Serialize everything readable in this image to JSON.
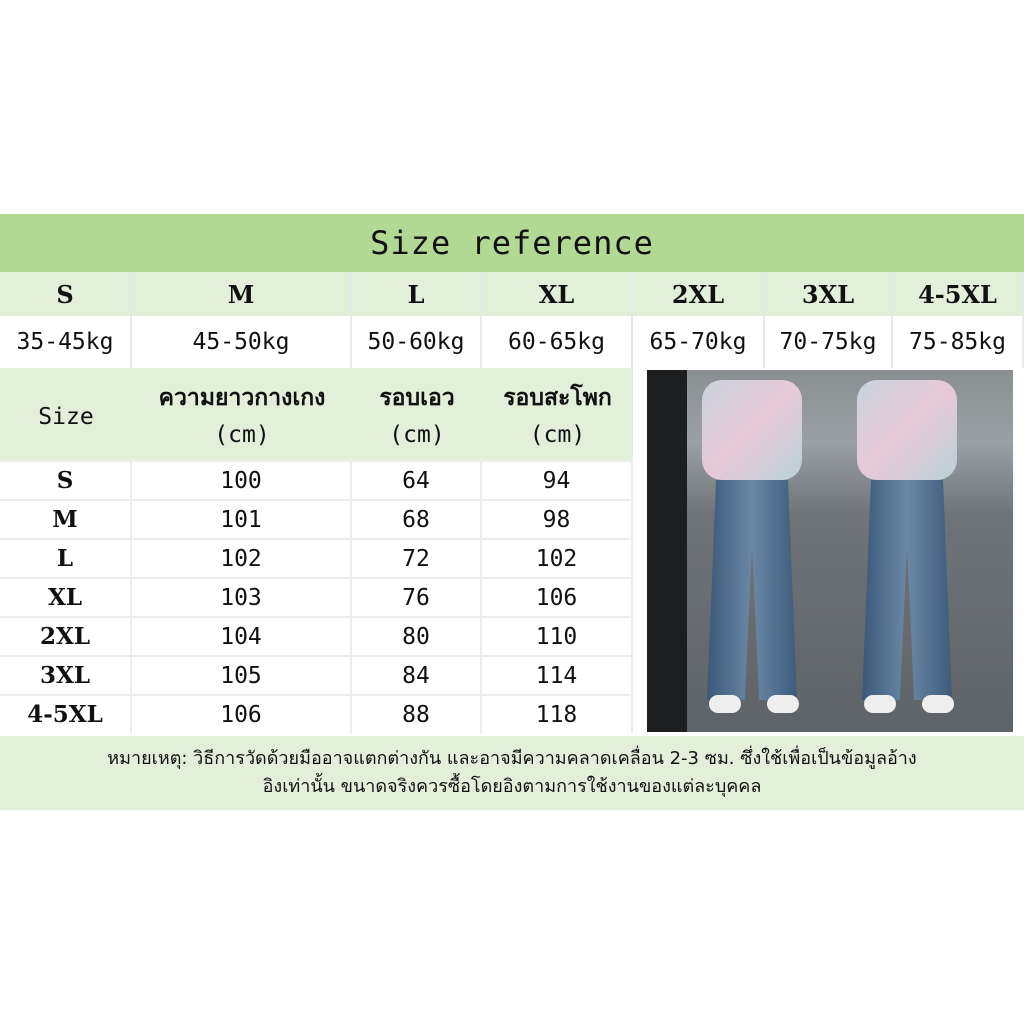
{
  "title": "Size reference",
  "weight_table": {
    "sizes": [
      "S",
      "M",
      "L",
      "XL",
      "2XL",
      "3XL",
      "4-5XL"
    ],
    "weights": [
      "35-45kg",
      "45-50kg",
      "50-60kg",
      "60-65kg",
      "65-70kg",
      "70-75kg",
      "75-85kg"
    ]
  },
  "measure_table": {
    "headers": [
      {
        "label": "Size",
        "unit": ""
      },
      {
        "label": "ความยาวกางเกง",
        "unit": "(cm)"
      },
      {
        "label": "รอบเอว",
        "unit": "(cm)"
      },
      {
        "label": "รอบสะโพก",
        "unit": "(cm)"
      }
    ],
    "rows": [
      [
        "S",
        "100",
        "64",
        "94"
      ],
      [
        "M",
        "101",
        "68",
        "98"
      ],
      [
        "L",
        "102",
        "72",
        "102"
      ],
      [
        "XL",
        "103",
        "76",
        "106"
      ],
      [
        "2XL",
        "104",
        "80",
        "110"
      ],
      [
        "3XL",
        "105",
        "84",
        "114"
      ],
      [
        "4-5XL",
        "106",
        "88",
        "118"
      ]
    ]
  },
  "note": {
    "line1": "หมายเหตุ: วิธีการวัดด้วยมืออาจแตกต่างกัน และอาจมีความคลาดเคลื่อน 2-3 ซม. ซึ่งใช้เพื่อเป็นข้อมูลอ้าง",
    "line2": "อิงเท่านั้น ขนาดจริงควรซื้อโดยอิงตามการใช้งานของแต่ละบุคคล"
  },
  "colors": {
    "header_green": "#b1d994",
    "light_green": "#e2f0d9"
  }
}
